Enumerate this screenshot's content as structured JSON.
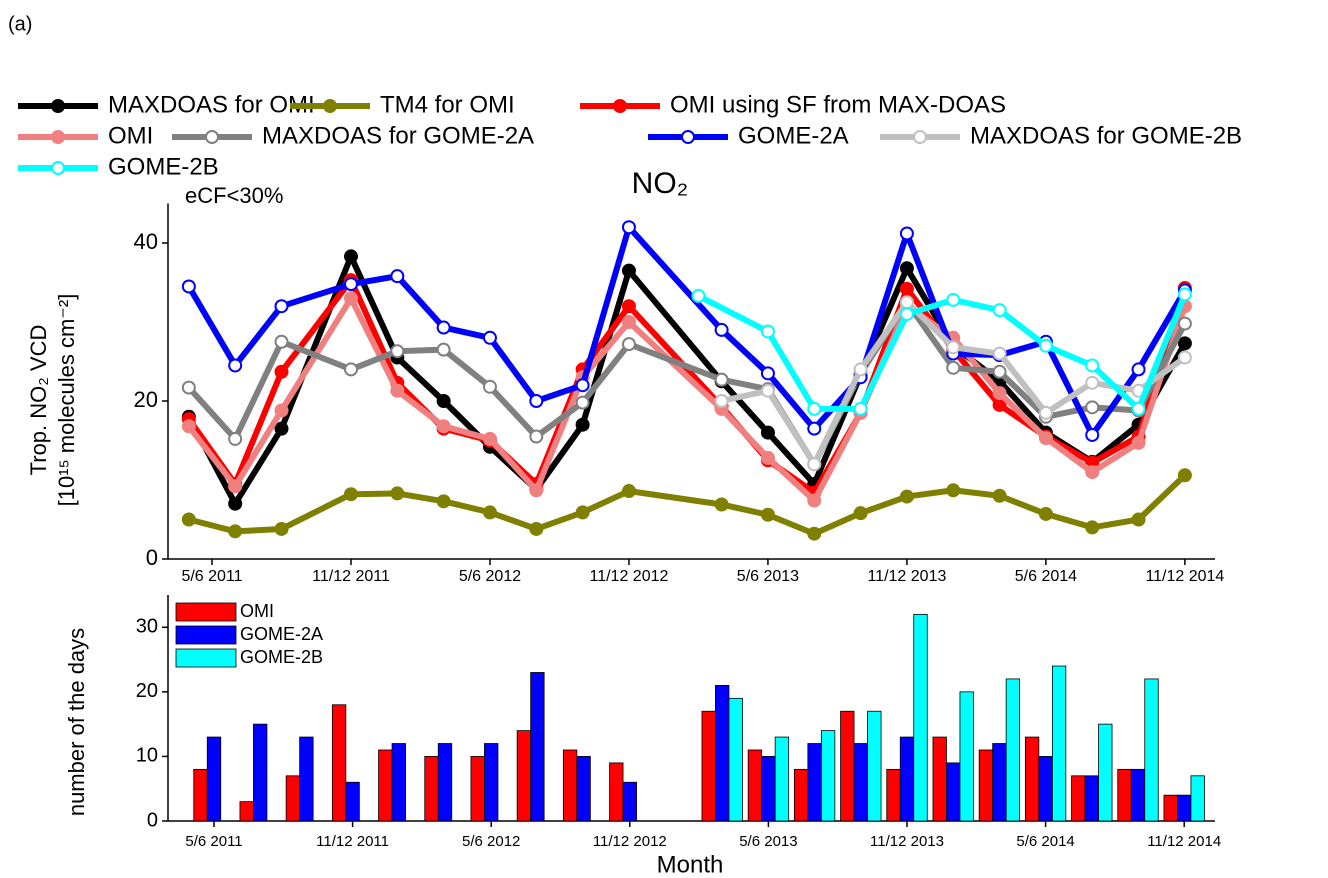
{
  "panel_label": "(a)",
  "chart_data": [
    {
      "type": "line",
      "title": "NO₂",
      "annotation": "eCF<30%",
      "y_label": [
        "Trop. NO₂ VCD",
        "[10¹⁵ molecules cm⁻²]"
      ],
      "xlim": [
        3.1,
        48.3
      ],
      "xticks": [
        {
          "value": 5,
          "label": "5/6 2011"
        },
        {
          "value": 11,
          "label": "11/12 2011"
        },
        {
          "value": 17,
          "label": "5/6 2012"
        },
        {
          "value": 23,
          "label": "11/12 2012"
        },
        {
          "value": 29,
          "label": "5/6 2013"
        },
        {
          "value": 35,
          "label": "11/12 2013"
        },
        {
          "value": 41,
          "label": "5/6 2014"
        },
        {
          "value": 47,
          "label": "11/12 2014"
        }
      ],
      "ylim": [
        0,
        45
      ],
      "yticks": [
        0,
        20,
        40
      ],
      "series": [
        {
          "name": "MAXDOAS for OMI",
          "color": "#000000",
          "hollow_markers": false,
          "x": [
            4,
            6,
            8,
            11,
            13,
            15,
            17,
            19,
            21,
            23,
            27,
            29,
            31,
            33,
            35,
            37,
            39,
            41,
            43,
            45,
            47
          ],
          "values": [
            18,
            7,
            16.5,
            38.3,
            25.5,
            20,
            14.2,
            8.8,
            17,
            36.5,
            22.5,
            16,
            9.5,
            23.3,
            36.8,
            27,
            22.5,
            16,
            12.3,
            17,
            27.3
          ]
        },
        {
          "name": "TM4 for OMI",
          "color": "#808000",
          "hollow_markers": false,
          "x": [
            4,
            6,
            8,
            11,
            13,
            15,
            17,
            19,
            21,
            23,
            27,
            29,
            31,
            33,
            35,
            37,
            39,
            41,
            43,
            45,
            47
          ],
          "values": [
            5,
            3.5,
            3.8,
            8.2,
            8.3,
            7.3,
            5.9,
            3.8,
            5.9,
            8.6,
            6.9,
            5.6,
            3.2,
            5.8,
            7.9,
            8.7,
            8,
            5.7,
            4,
            5,
            10.6
          ]
        },
        {
          "name": "OMI using SF from MAX-DOAS",
          "color": "#ff0000",
          "hollow_markers": false,
          "x": [
            4,
            6,
            8,
            11,
            13,
            15,
            17,
            19,
            21,
            23,
            27,
            29,
            31,
            33,
            35,
            37,
            39,
            41,
            43,
            45,
            47
          ],
          "values": [
            17.7,
            9.5,
            23.7,
            35.3,
            22.3,
            16.5,
            15,
            9.5,
            24,
            32,
            19.3,
            12.5,
            8.4,
            18.5,
            34.2,
            26.5,
            19.5,
            15.5,
            12.2,
            15.5,
            34.3
          ]
        },
        {
          "name": "OMI",
          "color": "#f08080",
          "hollow_markers": false,
          "x": [
            4,
            6,
            8,
            11,
            13,
            15,
            17,
            19,
            21,
            23,
            27,
            29,
            31,
            33,
            35,
            37,
            39,
            41,
            43,
            45,
            47
          ],
          "values": [
            16.8,
            9.2,
            18.8,
            33,
            21.3,
            16.8,
            15.2,
            8.7,
            23,
            30,
            19,
            12.8,
            7.4,
            18.5,
            32,
            28,
            21,
            15.3,
            11,
            14.7,
            32
          ]
        },
        {
          "name": "MAXDOAS for GOME-2A",
          "color": "#808080",
          "hollow_markers": true,
          "x": [
            4,
            6,
            8,
            11,
            13,
            15,
            17,
            19,
            21,
            23,
            27,
            29,
            31,
            33,
            35,
            37,
            39,
            41,
            43,
            45,
            47
          ],
          "values": [
            21.7,
            15.2,
            27.5,
            24,
            26.3,
            26.5,
            21.8,
            15.5,
            19.8,
            27.2,
            22.7,
            21.5,
            12,
            23.5,
            32.5,
            24.2,
            23.7,
            18,
            19.2,
            18.8,
            29.8
          ]
        },
        {
          "name": "GOME-2A",
          "color": "#0000ff",
          "hollow_markers": true,
          "x": [
            4,
            6,
            8,
            11,
            13,
            15,
            17,
            19,
            21,
            23,
            27,
            29,
            31,
            33,
            35,
            37,
            39,
            41,
            43,
            45,
            47
          ],
          "values": [
            34.5,
            24.5,
            32,
            34.8,
            35.8,
            29.3,
            28,
            20,
            22,
            42,
            29,
            23.5,
            16.5,
            23,
            41.2,
            26,
            25.8,
            27.5,
            15.7,
            24,
            34
          ]
        },
        {
          "name": "MAXDOAS for GOME-2B",
          "color": "#c0c0c0",
          "hollow_markers": true,
          "x": [
            27,
            29,
            31,
            33,
            35,
            37,
            39,
            41,
            43,
            45,
            47
          ],
          "values": [
            20,
            21.3,
            12,
            24,
            32.5,
            26.8,
            26,
            18.5,
            22.3,
            21.3,
            25.5
          ]
        },
        {
          "name": "GOME-2B",
          "color": "#00ffff",
          "hollow_markers": true,
          "x": [
            26,
            29,
            31,
            33,
            35,
            37,
            39,
            41,
            43,
            45,
            47
          ],
          "values": [
            33.3,
            28.8,
            19,
            19,
            31,
            32.8,
            31.5,
            27,
            24.5,
            19,
            33.5
          ]
        }
      ]
    },
    {
      "type": "bar",
      "y_label": "number of the days",
      "x_label": "Month",
      "categories": [
        "5/6 2011",
        null,
        null,
        "11/12 2011",
        null,
        null,
        "5/6 2012",
        null,
        null,
        "11/12 2012",
        null,
        null,
        "5/6 2013",
        null,
        null,
        "11/12 2013",
        null,
        null,
        "5/6 2014",
        null,
        null,
        "11/12 2014"
      ],
      "ylim": [
        0,
        35
      ],
      "yticks": [
        0,
        10,
        20,
        30
      ],
      "legend": "upper-left",
      "series": [
        {
          "name": "OMI",
          "color": "#ff0000",
          "values": [
            8,
            3,
            7,
            18,
            11,
            10,
            10,
            14,
            11,
            9,
            null,
            17,
            11,
            8,
            17,
            8,
            13,
            11,
            13,
            7,
            8,
            4
          ]
        },
        {
          "name": "GOME-2A",
          "color": "#0000ff",
          "values": [
            13,
            15,
            13,
            6,
            12,
            12,
            12,
            23,
            10,
            6,
            null,
            21,
            10,
            12,
            12,
            13,
            9,
            12,
            10,
            7,
            8,
            4
          ]
        },
        {
          "name": "GOME-2B",
          "color": "#00ffff",
          "values": [
            null,
            null,
            null,
            null,
            null,
            null,
            null,
            null,
            null,
            null,
            null,
            19,
            13,
            14,
            17,
            32,
            20,
            22,
            24,
            15,
            22,
            7
          ]
        }
      ]
    }
  ]
}
